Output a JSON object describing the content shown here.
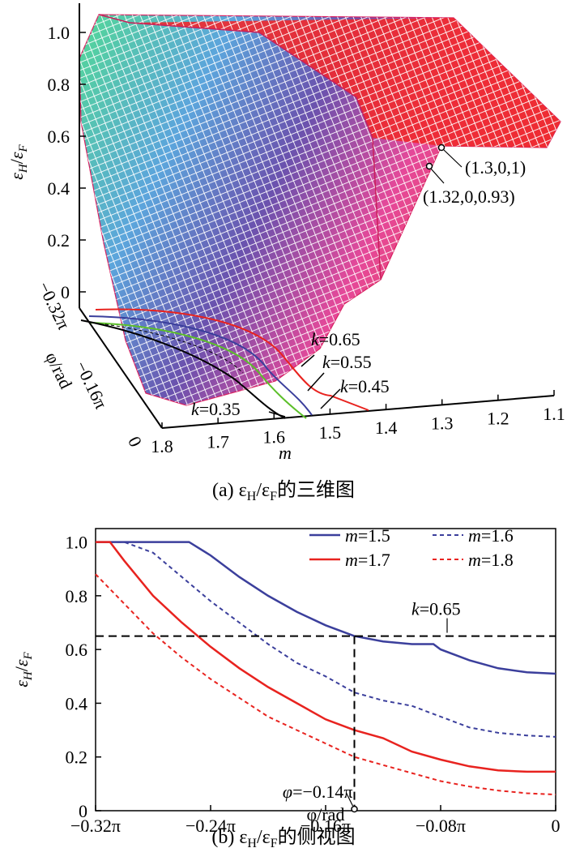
{
  "chart_data": [
    {
      "type": "surface",
      "panel": "a",
      "caption_prefix": "(a)",
      "caption_text": "的三维图",
      "z_axis": {
        "label_num": "ε",
        "label_num_sub": "H",
        "label_den": "ε",
        "label_den_sub": "F",
        "ticks": [
          "0",
          "0.2",
          "0.4",
          "0.6",
          "0.8",
          "1.0"
        ],
        "range": [
          0,
          1
        ]
      },
      "phi_axis": {
        "label": "φ/rad",
        "ticks": [
          "0",
          "−0.16π",
          "−0.32π"
        ],
        "range": [
          -0.32,
          0
        ]
      },
      "m_axis": {
        "label": "m",
        "ticks": [
          "1.8",
          "1.7",
          "1.6",
          "1.5",
          "1.4",
          "1.3",
          "1.2",
          "1.1"
        ],
        "range": [
          1.1,
          1.8
        ]
      },
      "annotations": [
        {
          "text": "(1.3,0,1)",
          "m": 1.3,
          "phi": 0,
          "value": 1
        },
        {
          "text": "(1.32,0,0.93)",
          "m": 1.32,
          "phi": 0,
          "value": 0.93
        }
      ],
      "contours": [
        {
          "name": "k=0.65",
          "k_label": "k",
          "k_value": "=0.65",
          "color": "#e8231f"
        },
        {
          "name": "k=0.55",
          "k_label": "k",
          "k_value": "=0.55",
          "color": "#3b3f9c"
        },
        {
          "name": "k=0.45",
          "k_label": "k",
          "k_value": "=0.45",
          "color": "#5cbf2a"
        },
        {
          "name": "k=0.35",
          "k_label": "k",
          "k_value": "=0.35",
          "color": "#000000"
        }
      ]
    },
    {
      "type": "line",
      "panel": "b",
      "caption_prefix": "(b)",
      "caption_text": "的侧视图",
      "xlabel": "φ/rad",
      "ylabel": {
        "num": "ε",
        "num_sub": "H",
        "den": "ε",
        "den_sub": "F"
      },
      "x_units": "π rad",
      "xlim": [
        -0.32,
        0
      ],
      "ylim": [
        0,
        1.05
      ],
      "xticks": [
        -0.32,
        -0.24,
        -0.16,
        -0.08,
        0
      ],
      "xtick_labels": [
        "−0.32π",
        "−0.24π",
        "−0.16π",
        "−0.08π",
        "0"
      ],
      "yticks": [
        0,
        0.2,
        0.4,
        0.6,
        0.8,
        1.0
      ],
      "ytick_labels": [
        "0",
        "0.2",
        "0.4",
        "0.6",
        "0.8",
        "1.0"
      ],
      "reference": {
        "y": 0.65,
        "label_k": "k",
        "label_value": "=0.65",
        "x_marker": -0.14,
        "marker_label_phi": "φ",
        "marker_label_value": "=−0.14π"
      },
      "legend_position": "top-right",
      "series": [
        {
          "name": "m=1.5",
          "name_var": "m",
          "name_value": "=1.5",
          "color": "#3b3f9c",
          "dash": false,
          "x": [
            -0.32,
            -0.26,
            -0.255,
            -0.24,
            -0.22,
            -0.2,
            -0.18,
            -0.16,
            -0.14,
            -0.12,
            -0.1,
            -0.09,
            -0.085,
            -0.08,
            -0.06,
            -0.04,
            -0.02,
            0
          ],
          "y": [
            1.0,
            1.0,
            1.0,
            0.95,
            0.87,
            0.8,
            0.74,
            0.69,
            0.65,
            0.63,
            0.62,
            0.62,
            0.62,
            0.6,
            0.56,
            0.53,
            0.515,
            0.51
          ]
        },
        {
          "name": "m=1.6",
          "name_var": "m",
          "name_value": "=1.6",
          "color": "#3b3f9c",
          "dash": true,
          "x": [
            -0.32,
            -0.3,
            -0.28,
            -0.26,
            -0.24,
            -0.22,
            -0.2,
            -0.18,
            -0.16,
            -0.14,
            -0.12,
            -0.1,
            -0.08,
            -0.06,
            -0.04,
            -0.02,
            0
          ],
          "y": [
            1.0,
            1.0,
            0.96,
            0.87,
            0.78,
            0.7,
            0.62,
            0.55,
            0.5,
            0.44,
            0.41,
            0.39,
            0.35,
            0.31,
            0.29,
            0.28,
            0.275
          ]
        },
        {
          "name": "m=1.7",
          "name_var": "m",
          "name_value": "=1.7",
          "color": "#e8231f",
          "dash": false,
          "x": [
            -0.32,
            -0.31,
            -0.3,
            -0.28,
            -0.26,
            -0.24,
            -0.22,
            -0.2,
            -0.18,
            -0.16,
            -0.14,
            -0.12,
            -0.1,
            -0.08,
            -0.06,
            -0.04,
            -0.02,
            0
          ],
          "y": [
            1.0,
            1.0,
            0.93,
            0.8,
            0.7,
            0.61,
            0.53,
            0.46,
            0.4,
            0.34,
            0.3,
            0.27,
            0.22,
            0.19,
            0.165,
            0.15,
            0.145,
            0.145
          ]
        },
        {
          "name": "m=1.8",
          "name_var": "m",
          "name_value": "=1.8",
          "color": "#e8231f",
          "dash": true,
          "x": [
            -0.32,
            -0.3,
            -0.28,
            -0.26,
            -0.24,
            -0.22,
            -0.2,
            -0.18,
            -0.16,
            -0.14,
            -0.12,
            -0.1,
            -0.08,
            -0.06,
            -0.04,
            -0.02,
            0
          ],
          "y": [
            0.88,
            0.77,
            0.66,
            0.57,
            0.49,
            0.42,
            0.35,
            0.3,
            0.25,
            0.2,
            0.17,
            0.14,
            0.11,
            0.09,
            0.075,
            0.065,
            0.06
          ]
        }
      ]
    }
  ]
}
